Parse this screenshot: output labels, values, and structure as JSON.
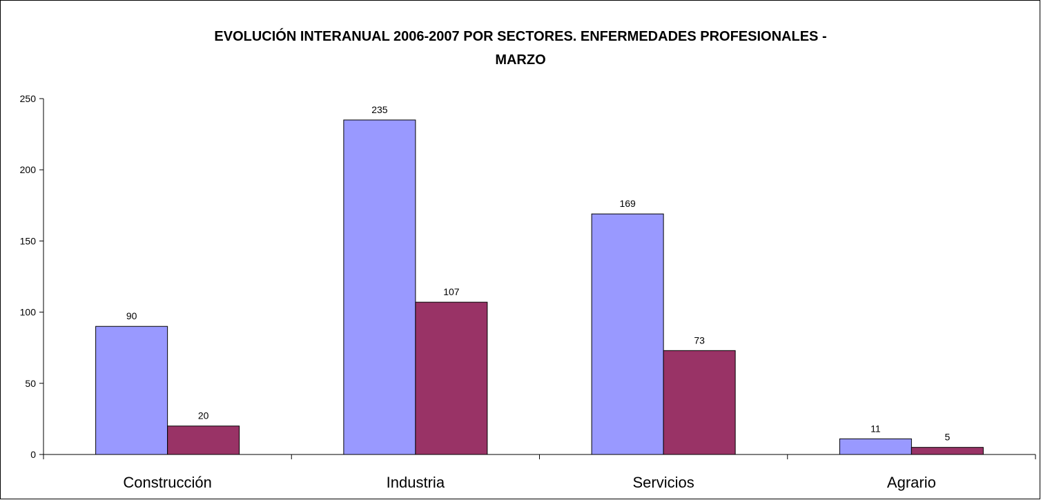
{
  "chart_data": {
    "type": "bar",
    "title_lines": [
      "EVOLUCIÓN INTERANUAL 2006-2007 POR SECTORES. ENFERMEDADES PROFESIONALES -",
      "MARZO"
    ],
    "categories": [
      "Construcción",
      "Industria",
      "Servicios",
      "Agrario"
    ],
    "series": [
      {
        "values": [
          90,
          235,
          169,
          11
        ],
        "color": "#9999ff"
      },
      {
        "values": [
          20,
          107,
          73,
          5
        ],
        "color": "#993366"
      }
    ],
    "ylim": [
      0,
      250
    ],
    "yticks": [
      0,
      50,
      100,
      150,
      200,
      250
    ],
    "grid": false,
    "legend": "none"
  }
}
